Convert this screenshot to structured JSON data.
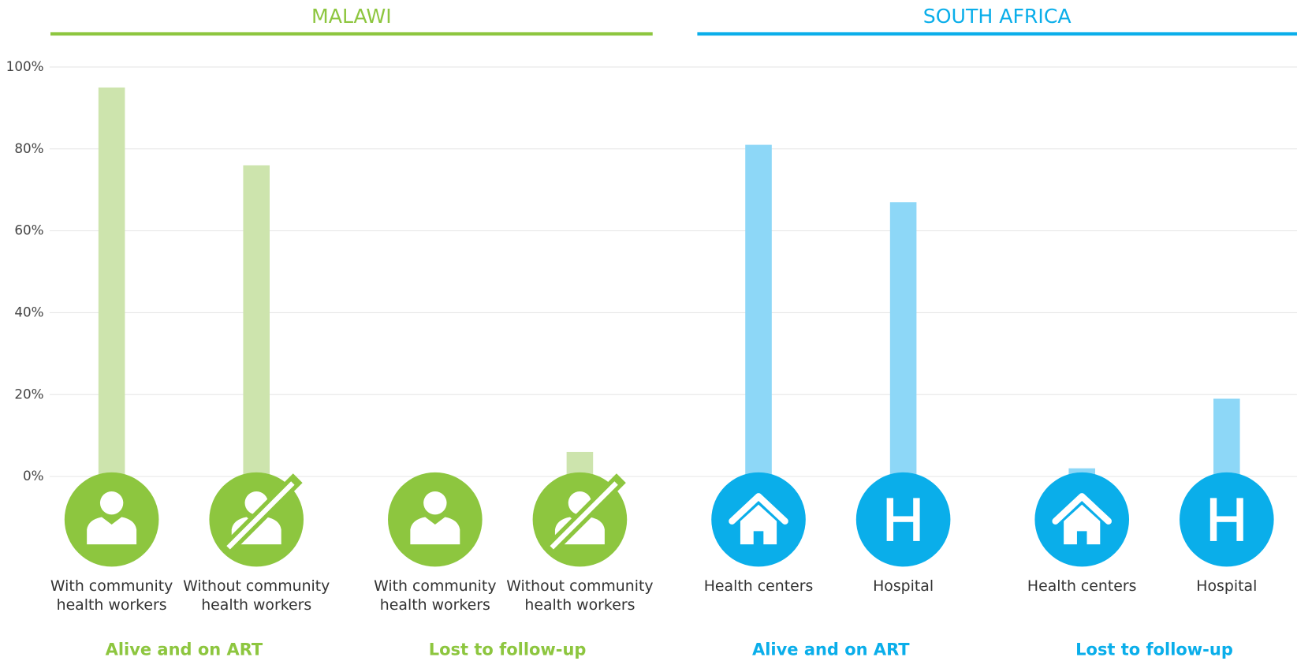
{
  "chart_data": {
    "type": "bar",
    "ylim": [
      0,
      100
    ],
    "yticks": [
      {
        "value": 0,
        "label": "0%"
      },
      {
        "value": 20,
        "label": "20%"
      },
      {
        "value": 40,
        "label": "40%"
      },
      {
        "value": 60,
        "label": "60%"
      },
      {
        "value": 80,
        "label": "80%"
      },
      {
        "value": 100,
        "label": "100%"
      }
    ],
    "grid": true,
    "panels": [
      {
        "title": "MALAWI",
        "color": "#8dc63f",
        "bar_color": "#cde4ad",
        "groups": [
          {
            "name": "Alive and on ART",
            "categories": [
              "With community health workers",
              "Without community health workers"
            ],
            "values": [
              95,
              76
            ]
          },
          {
            "name": "Lost to follow-up",
            "categories": [
              "With community health workers",
              "Without community health workers"
            ],
            "values": [
              0,
              6
            ]
          }
        ]
      },
      {
        "title": "SOUTH AFRICA",
        "color": "#0aaeea",
        "bar_color": "#8dd7f7",
        "groups": [
          {
            "name": "Alive and on ART",
            "categories": [
              "Health centers",
              "Hospital"
            ],
            "values": [
              81,
              67
            ]
          },
          {
            "name": "Lost to follow-up",
            "categories": [
              "Health centers",
              "Hospital"
            ],
            "values": [
              2,
              19
            ]
          }
        ]
      }
    ]
  }
}
